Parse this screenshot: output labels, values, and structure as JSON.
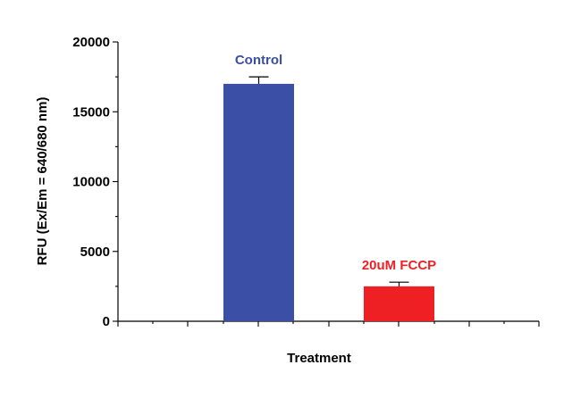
{
  "chart_data": {
    "type": "bar",
    "categories": [
      "Control",
      "20uM FCCP"
    ],
    "values": [
      17000,
      2500
    ],
    "errors": [
      500,
      300
    ],
    "colors": [
      "#3a4fa5",
      "#ee2024"
    ],
    "xlabel": "Treatment",
    "ylabel": "RFU (Ex/Em = 640/680 nm)",
    "ylim": [
      0,
      20000
    ],
    "yticks": [
      0,
      5000,
      10000,
      15000,
      20000
    ],
    "grid": false,
    "legend": "none"
  }
}
